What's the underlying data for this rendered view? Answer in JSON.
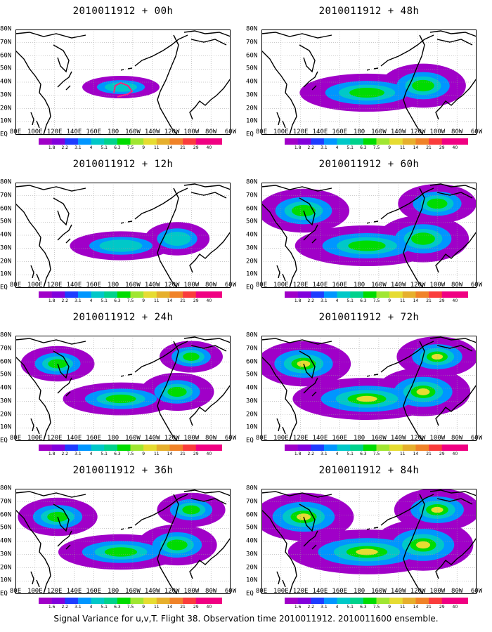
{
  "panels": [
    {
      "title": "2010011912 + 00h",
      "lead": "00h",
      "intensity": 0.25
    },
    {
      "title": "2010011912 + 48h",
      "lead": "48h",
      "intensity": 0.7
    },
    {
      "title": "2010011912 + 12h",
      "lead": "12h",
      "intensity": 0.35
    },
    {
      "title": "2010011912 + 60h",
      "lead": "60h",
      "intensity": 0.8
    },
    {
      "title": "2010011912 + 24h",
      "lead": "24h",
      "intensity": 0.5
    },
    {
      "title": "2010011912 + 72h",
      "lead": "72h",
      "intensity": 0.85
    },
    {
      "title": "2010011912 + 36h",
      "lead": "36h",
      "intensity": 0.6
    },
    {
      "title": "2010011912 + 84h",
      "lead": "84h",
      "intensity": 0.95
    }
  ],
  "lat_labels": [
    "80N",
    "70N",
    "60N",
    "50N",
    "40N",
    "30N",
    "20N",
    "10N",
    "EQ"
  ],
  "lon_labels": [
    "80E",
    "100E",
    "120E",
    "140E",
    "160E",
    "180",
    "160W",
    "140W",
    "120W",
    "100W",
    "80W",
    "60W"
  ],
  "colorbar": {
    "labels": [
      "1.8",
      "2.2",
      "3.1",
      "4",
      "5.1",
      "6.3",
      "7.5",
      "9",
      "11",
      "14",
      "21",
      "29",
      "40"
    ],
    "labels_last_panel": [
      "1.6",
      "2.2",
      "3.1",
      "4",
      "5.1",
      "6.3",
      "7.5",
      "9",
      "11",
      "14",
      "21",
      "29",
      "40"
    ],
    "colors": [
      "#a000c8",
      "#8200dc",
      "#1e3cff",
      "#0096ff",
      "#00c8c8",
      "#00d28c",
      "#00dc00",
      "#a0e632",
      "#e6dc32",
      "#e6af2d",
      "#f08228",
      "#fa3c3c",
      "#f00082"
    ]
  },
  "caption": "Signal Variance for u,v,T. Flight 38. Observation time 2010011912. 2010011600 ensemble."
}
